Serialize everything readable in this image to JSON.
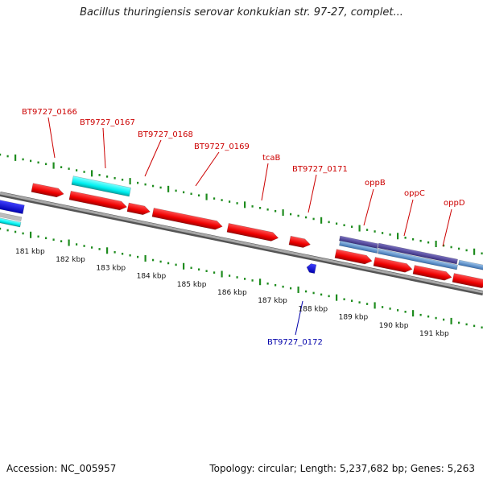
{
  "title": "Bacillus thuringiensis serovar konkukian str. 97-27, complet...",
  "accession_text": "Accession: NC_005957",
  "topology_text": "Topology: circular; Length: 5,237,682 bp; Genes: 5,263",
  "kbp_labels": [
    "181 kbp",
    "182 kbp",
    "183 kbp",
    "184 kbp",
    "185 kbp",
    "186 kbp",
    "187 kbp",
    "188 kbp",
    "189 kbp",
    "190 kbp",
    "191 kbp"
  ],
  "gene_labels": [
    {
      "text": "BT9727_0166",
      "color": "#cc0000"
    },
    {
      "text": "BT9727_0167",
      "color": "#cc0000"
    },
    {
      "text": "BT9727_0168",
      "color": "#cc0000"
    },
    {
      "text": "BT9727_0169",
      "color": "#cc0000"
    },
    {
      "text": "tcaB",
      "color": "#cc0000"
    },
    {
      "text": "BT9727_0171",
      "color": "#cc0000"
    },
    {
      "text": "oppB",
      "color": "#cc0000"
    },
    {
      "text": "oppC",
      "color": "#cc0000"
    },
    {
      "text": "oppD",
      "color": "#cc0000"
    },
    {
      "text": "BT9727_0172",
      "color": "#0000aa"
    }
  ],
  "colors": {
    "cds_forward": "#ff0000",
    "cds_reverse": "#0000ff",
    "rna": "#00ffff",
    "operon_dark": "#5a4fa0",
    "operon_light": "#6a9fd0",
    "backbone": "#8c8c8c",
    "gc_ticks": "#1e8c1e"
  }
}
